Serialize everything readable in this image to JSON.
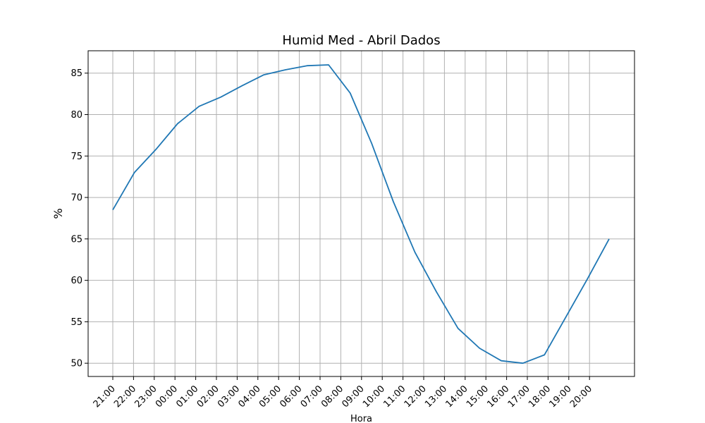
{
  "chart_data": {
    "type": "line",
    "title": "Humid Med - Abril Dados",
    "xlabel": "Hora",
    "ylabel": "%",
    "ylim": [
      48.4,
      87.7
    ],
    "yticks": [
      50,
      55,
      60,
      65,
      70,
      75,
      80,
      85
    ],
    "grid": true,
    "categories": [
      "21:00",
      "22:00",
      "23:00",
      "00:00",
      "01:00",
      "02:00",
      "03:00",
      "04:00",
      "05:00",
      "06:00",
      "07:00",
      "08:00",
      "09:00",
      "10:00",
      "11:00",
      "12:00",
      "13:00",
      "14:00",
      "15:00",
      "16:00",
      "17:00",
      "18:00",
      "19:00",
      "20:00"
    ],
    "line_color": "#1f77b4",
    "series": [
      {
        "points": [
          [
            "21:00",
            68.5
          ],
          [
            "22:00",
            73.0
          ],
          [
            "23:00",
            75.8
          ],
          [
            "00:00",
            78.9
          ],
          [
            "01:00",
            81.0
          ],
          [
            "02:00",
            82.1
          ],
          [
            "03:00",
            83.5
          ],
          [
            "04:00",
            84.8
          ],
          [
            "05:00",
            85.4
          ],
          [
            "06:00",
            85.9
          ],
          [
            "07:00",
            86.0
          ],
          [
            "08:00",
            82.6
          ],
          [
            "09:00",
            76.5
          ],
          [
            "10:00",
            69.5
          ],
          [
            "11:00",
            63.4
          ],
          [
            "12:00",
            58.6
          ],
          [
            "13:00",
            54.2
          ],
          [
            "14:00",
            51.8
          ],
          [
            "15:00",
            50.3
          ],
          [
            "16:00",
            50.0
          ],
          [
            "17:00",
            51.0
          ],
          [
            "18:00",
            55.6
          ],
          [
            "19:00",
            60.2
          ],
          [
            "20:00",
            65.0
          ]
        ]
      }
    ]
  }
}
